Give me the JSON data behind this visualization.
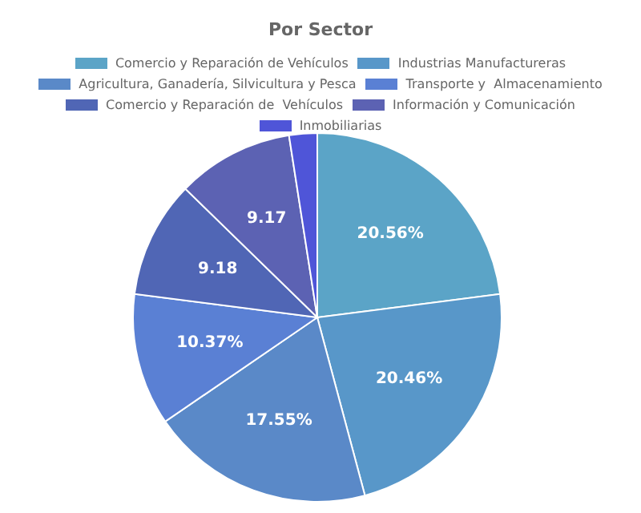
{
  "chart_data": {
    "type": "pie",
    "title": "Por Sector",
    "categories": [
      "Comercio y Reparación de Vehículos",
      "Industrias Manufactureras",
      "Agricultura, Ganadería, Silvicultura y Pesca",
      "Transporte y  Almacenamiento",
      "Comercio y Reparación de  Vehículos",
      "Información y Comunicación",
      "Inmobiliarias"
    ],
    "values": [
      20.56,
      20.46,
      17.55,
      10.37,
      9.18,
      9.17,
      2.2
    ],
    "colors": [
      "#5ba4c7",
      "#5897c9",
      "#5a89c8",
      "#5a80d4",
      "#5066b5",
      "#5c62b3",
      "#4f55d8"
    ],
    "value_labels": [
      "20.56%",
      "20.46%",
      "17.55%",
      "10.37%",
      "9.18",
      "9.17",
      null
    ],
    "legend": "top"
  }
}
